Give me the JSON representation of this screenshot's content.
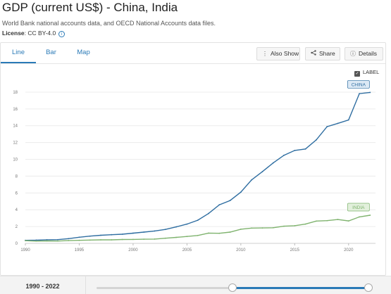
{
  "page": {
    "title": "GDP (current US$) - China, India",
    "subtitle": "World Bank national accounts data, and OECD National Accounts data files.",
    "license_label": "License",
    "license_value": ": CC BY-4.0",
    "info_icon": "i"
  },
  "tabs": [
    {
      "label": "Line",
      "active": true
    },
    {
      "label": "Bar",
      "active": false
    },
    {
      "label": "Map",
      "active": false
    }
  ],
  "toolbar": {
    "also_show_label": "Also Show",
    "also_show_icon": "⋮",
    "share_label": "Share",
    "share_icon": "share-icon",
    "details_label": "Details",
    "details_icon": "ⓘ"
  },
  "label_toggle": {
    "label": "LABEL",
    "checked": true,
    "check_glyph": "✓"
  },
  "range": {
    "label": "1990 - 2022"
  },
  "colors": {
    "accent": "#2a7ab7",
    "china": "#2f6ea1",
    "india": "#7fb36e"
  },
  "chart_data": {
    "type": "line",
    "title": "",
    "xlabel": "",
    "ylabel": "",
    "xlim": [
      1990,
      2022.5
    ],
    "ylim": [
      0,
      19
    ],
    "x_ticks": [
      1990,
      1995,
      2000,
      2005,
      2010,
      2015,
      2020
    ],
    "y_ticks": [
      0,
      2,
      4,
      6,
      8,
      10,
      12,
      14,
      16,
      18
    ],
    "x_tick_labels": [
      "1990",
      "1995",
      "2000",
      "2005",
      "2010",
      "2015",
      "2020"
    ],
    "y_tick_labels": [
      "0",
      "2",
      "4",
      "6",
      "8",
      "10",
      "12",
      "14",
      "16",
      "18"
    ],
    "grid": "horizontal",
    "x": [
      1990,
      1991,
      1992,
      1993,
      1994,
      1995,
      1996,
      1997,
      1998,
      1999,
      2000,
      2001,
      2002,
      2003,
      2004,
      2005,
      2006,
      2007,
      2008,
      2009,
      2010,
      2011,
      2012,
      2013,
      2014,
      2015,
      2016,
      2017,
      2018,
      2019,
      2020,
      2021,
      2022
    ],
    "series": [
      {
        "name": "CHINA",
        "values": [
          0.36,
          0.38,
          0.43,
          0.44,
          0.56,
          0.73,
          0.86,
          0.96,
          1.03,
          1.09,
          1.21,
          1.34,
          1.47,
          1.66,
          1.96,
          2.29,
          2.75,
          3.55,
          4.59,
          5.1,
          6.09,
          7.55,
          8.53,
          9.57,
          10.48,
          11.06,
          11.23,
          12.31,
          13.89,
          14.28,
          14.69,
          17.82,
          17.96
        ]
      },
      {
        "name": "INDIA",
        "values": [
          0.32,
          0.27,
          0.29,
          0.28,
          0.33,
          0.36,
          0.39,
          0.42,
          0.42,
          0.46,
          0.47,
          0.49,
          0.51,
          0.61,
          0.71,
          0.82,
          0.94,
          1.22,
          1.2,
          1.34,
          1.68,
          1.82,
          1.83,
          1.86,
          2.04,
          2.1,
          2.29,
          2.65,
          2.7,
          2.84,
          2.67,
          3.15,
          3.35
        ]
      }
    ]
  }
}
